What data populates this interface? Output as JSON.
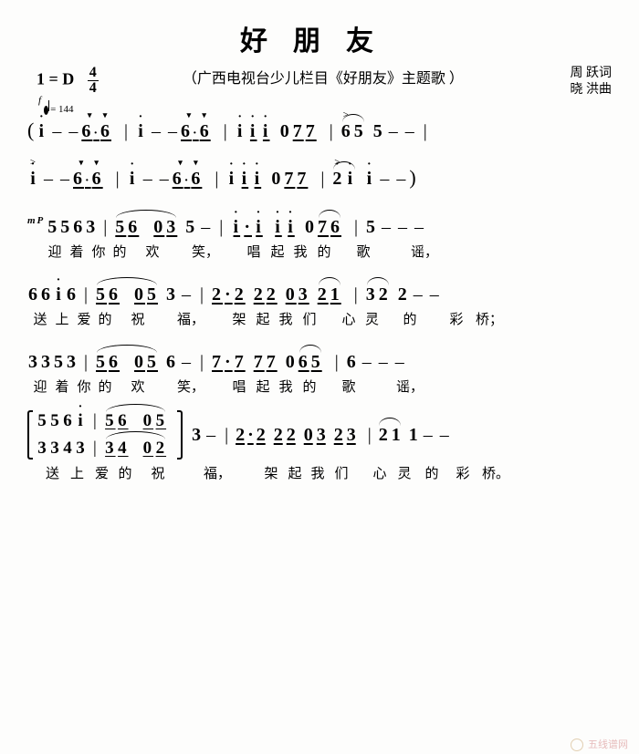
{
  "title": "好朋友",
  "subtitle": "（广西电视台少儿栏目《好朋友》主题歌 ）",
  "key": "1 = D",
  "time_top": "4",
  "time_bot": "4",
  "credits": {
    "lyricist": "周 跃词",
    "composer": "晓 洪曲"
  },
  "tempo": "= 144",
  "dyn_f": "f",
  "dyn_mp": "mP",
  "intro": {
    "line1": [
      {
        "t": "paren",
        "v": "("
      },
      {
        "t": "n",
        "v": "i",
        "dot": "above"
      },
      {
        "t": "dash"
      },
      {
        "t": "dash"
      },
      {
        "t": "grp",
        "ul": true,
        "notes": [
          {
            "v": "6",
            "dot": "after",
            "stacc": true
          },
          {
            "v": "6",
            "stacc": true
          }
        ]
      },
      {
        "t": "bar"
      },
      {
        "t": "n",
        "v": "i",
        "dot": "above"
      },
      {
        "t": "dash"
      },
      {
        "t": "dash"
      },
      {
        "t": "grp",
        "ul": true,
        "notes": [
          {
            "v": "6",
            "dot": "after",
            "stacc": true
          },
          {
            "v": "6",
            "stacc": true
          }
        ]
      },
      {
        "t": "bar"
      },
      {
        "t": "n",
        "v": "i",
        "dot": "above"
      },
      {
        "t": "grp",
        "ul": true,
        "notes": [
          {
            "v": "i",
            "dot": "above"
          },
          {
            "v": "i",
            "dot": "above"
          }
        ]
      },
      {
        "t": "n",
        "v": "0"
      },
      {
        "t": "grp",
        "ul": true,
        "notes": [
          {
            "v": "7"
          },
          {
            "v": "7"
          }
        ]
      },
      {
        "t": "bar"
      },
      {
        "t": "tie",
        "notes": [
          {
            "v": "6",
            "accent": true
          },
          {
            "v": "5"
          }
        ]
      },
      {
        "t": "n",
        "v": "5"
      },
      {
        "t": "dash"
      },
      {
        "t": "dash"
      },
      {
        "t": "bar"
      }
    ],
    "line2": [
      {
        "t": "n",
        "v": "i",
        "dot": "above",
        "accent": true
      },
      {
        "t": "dash"
      },
      {
        "t": "dash"
      },
      {
        "t": "grp",
        "ul": true,
        "notes": [
          {
            "v": "6",
            "dot": "after",
            "stacc": true
          },
          {
            "v": "6",
            "stacc": true
          }
        ]
      },
      {
        "t": "bar"
      },
      {
        "t": "n",
        "v": "i",
        "dot": "above"
      },
      {
        "t": "dash"
      },
      {
        "t": "dash"
      },
      {
        "t": "grp",
        "ul": true,
        "notes": [
          {
            "v": "6",
            "dot": "after",
            "stacc": true
          },
          {
            "v": "6",
            "stacc": true
          }
        ]
      },
      {
        "t": "bar"
      },
      {
        "t": "n",
        "v": "i",
        "dot": "above"
      },
      {
        "t": "grp",
        "ul": true,
        "notes": [
          {
            "v": "i",
            "dot": "above"
          },
          {
            "v": "i",
            "dot": "above"
          }
        ]
      },
      {
        "t": "n",
        "v": "0"
      },
      {
        "t": "grp",
        "ul": true,
        "notes": [
          {
            "v": "7"
          },
          {
            "v": "7"
          }
        ]
      },
      {
        "t": "bar"
      },
      {
        "t": "tie",
        "notes": [
          {
            "v": "2",
            "dot": "above",
            "accent": true
          },
          {
            "v": "i",
            "dot": "above"
          }
        ]
      },
      {
        "t": "n",
        "v": "i",
        "dot": "above"
      },
      {
        "t": "dash"
      },
      {
        "t": "dash"
      },
      {
        "t": "paren",
        "v": ")"
      }
    ]
  },
  "verses": [
    {
      "notes": "5 5 6 3 | 56 03 5 - | i.i ii 0 76 | 5 - - -",
      "seq": [
        {
          "t": "n",
          "v": "5"
        },
        {
          "t": "n",
          "v": "5"
        },
        {
          "t": "n",
          "v": "6"
        },
        {
          "t": "n",
          "v": "3"
        },
        {
          "t": "bar"
        },
        {
          "t": "tiegrp",
          "pairs": [
            [
              "5",
              "6"
            ],
            [
              "0",
              "3"
            ]
          ]
        },
        {
          "t": "n",
          "v": "5"
        },
        {
          "t": "dash"
        },
        {
          "t": "bar"
        },
        {
          "t": "grp",
          "ul": true,
          "notes": [
            {
              "v": "i",
              "dot": "above"
            },
            {
              "v": "·"
            },
            {
              "v": "i",
              "dot": "above"
            }
          ]
        },
        {
          "t": "grp",
          "ul": true,
          "notes": [
            {
              "v": "i",
              "dot": "above"
            },
            {
              "v": "i",
              "dot": "above"
            }
          ]
        },
        {
          "t": "n",
          "v": "0"
        },
        {
          "t": "tie",
          "ul": true,
          "notes": [
            {
              "v": "7"
            },
            {
              "v": "6"
            }
          ]
        },
        {
          "t": "bar"
        },
        {
          "t": "n",
          "v": "5"
        },
        {
          "t": "dash"
        },
        {
          "t": "dash"
        },
        {
          "t": "dash"
        }
      ],
      "lyrics": [
        "迎",
        "着",
        "你",
        "的",
        "欢",
        "",
        "笑，",
        "",
        "唱",
        "起",
        "我",
        "的",
        "",
        "歌",
        "",
        "谣，"
      ]
    },
    {
      "seq": [
        {
          "t": "n",
          "v": "6"
        },
        {
          "t": "n",
          "v": "6"
        },
        {
          "t": "n",
          "v": "i",
          "dot": "above"
        },
        {
          "t": "n",
          "v": "6"
        },
        {
          "t": "bar"
        },
        {
          "t": "tiegrp",
          "pairs": [
            [
              "5",
              "6"
            ],
            [
              "0",
              "5"
            ]
          ]
        },
        {
          "t": "n",
          "v": "3"
        },
        {
          "t": "dash"
        },
        {
          "t": "bar"
        },
        {
          "t": "grp",
          "ul": true,
          "notes": [
            {
              "v": "2"
            },
            {
              "v": "·"
            },
            {
              "v": "2"
            }
          ]
        },
        {
          "t": "grp",
          "ul": true,
          "notes": [
            {
              "v": "2"
            },
            {
              "v": "2"
            }
          ]
        },
        {
          "t": "grp",
          "ul": true,
          "notes": [
            {
              "v": "0"
            },
            {
              "v": "3"
            }
          ]
        },
        {
          "t": "tie",
          "ul": true,
          "notes": [
            {
              "v": "2"
            },
            {
              "v": "1"
            }
          ]
        },
        {
          "t": "bar"
        },
        {
          "t": "tie",
          "notes": [
            {
              "v": "3"
            },
            {
              "v": "2"
            }
          ]
        },
        {
          "t": "n",
          "v": "2"
        },
        {
          "t": "dash"
        },
        {
          "t": "dash"
        }
      ],
      "lyrics": [
        "送",
        "上",
        "爱",
        "的",
        "祝",
        "",
        "福，",
        "",
        "架",
        "起",
        "我",
        "们",
        "",
        "心",
        "灵",
        "的",
        "彩",
        "桥；"
      ]
    },
    {
      "seq": [
        {
          "t": "n",
          "v": "3"
        },
        {
          "t": "n",
          "v": "3"
        },
        {
          "t": "n",
          "v": "5"
        },
        {
          "t": "n",
          "v": "3"
        },
        {
          "t": "bar"
        },
        {
          "t": "tiegrp",
          "pairs": [
            [
              "5",
              "6"
            ],
            [
              "0",
              "5"
            ]
          ]
        },
        {
          "t": "n",
          "v": "6"
        },
        {
          "t": "dash"
        },
        {
          "t": "bar"
        },
        {
          "t": "grp",
          "ul": true,
          "notes": [
            {
              "v": "7"
            },
            {
              "v": "·"
            },
            {
              "v": "7"
            }
          ]
        },
        {
          "t": "grp",
          "ul": true,
          "notes": [
            {
              "v": "7"
            },
            {
              "v": "7"
            }
          ]
        },
        {
          "t": "n",
          "v": "0"
        },
        {
          "t": "tie",
          "ul": true,
          "notes": [
            {
              "v": "6"
            },
            {
              "v": "5"
            }
          ]
        },
        {
          "t": "bar"
        },
        {
          "t": "n",
          "v": "6"
        },
        {
          "t": "dash"
        },
        {
          "t": "dash"
        },
        {
          "t": "dash"
        }
      ],
      "lyrics": [
        "迎",
        "着",
        "你",
        "的",
        "欢",
        "",
        "笑，",
        "",
        "唱",
        "起",
        "我",
        "的",
        "",
        "歌",
        "",
        "谣，"
      ]
    }
  ],
  "ending": {
    "top": [
      {
        "t": "n",
        "v": "5"
      },
      {
        "t": "n",
        "v": "5"
      },
      {
        "t": "n",
        "v": "6"
      },
      {
        "t": "n",
        "v": "i",
        "dot": "above"
      },
      {
        "t": "bar"
      },
      {
        "t": "tiegrp",
        "pairs": [
          [
            "5",
            "6"
          ],
          [
            "0",
            "5"
          ]
        ]
      }
    ],
    "bot": [
      {
        "t": "n",
        "v": "3"
      },
      {
        "t": "n",
        "v": "3"
      },
      {
        "t": "n",
        "v": "4"
      },
      {
        "t": "n",
        "v": "3"
      },
      {
        "t": "bar"
      },
      {
        "t": "tiegrp",
        "pairs": [
          [
            "3",
            "4"
          ],
          [
            "0",
            "2"
          ]
        ]
      }
    ],
    "after": [
      {
        "t": "n",
        "v": "3"
      },
      {
        "t": "dash"
      },
      {
        "t": "bar"
      },
      {
        "t": "grp",
        "ul": true,
        "notes": [
          {
            "v": "2"
          },
          {
            "v": "·"
          },
          {
            "v": "2"
          }
        ]
      },
      {
        "t": "grp",
        "ul": true,
        "notes": [
          {
            "v": "2"
          },
          {
            "v": "2"
          }
        ]
      },
      {
        "t": "grp",
        "ul": true,
        "notes": [
          {
            "v": "0"
          },
          {
            "v": "3"
          }
        ]
      },
      {
        "t": "grp",
        "ul": true,
        "notes": [
          {
            "v": "2"
          },
          {
            "v": "3"
          }
        ]
      },
      {
        "t": "bar"
      },
      {
        "t": "tie",
        "notes": [
          {
            "v": "2"
          },
          {
            "v": "1"
          }
        ]
      },
      {
        "t": "n",
        "v": "1"
      },
      {
        "t": "dash"
      },
      {
        "t": "dash"
      }
    ],
    "lyrics": [
      "送",
      "上",
      "爱",
      "的",
      "祝",
      "",
      "福，",
      "",
      "架",
      "起",
      "我",
      "们",
      "",
      "心",
      "灵",
      "的",
      "彩",
      "桥。"
    ]
  },
  "watermark": "五线谱网"
}
